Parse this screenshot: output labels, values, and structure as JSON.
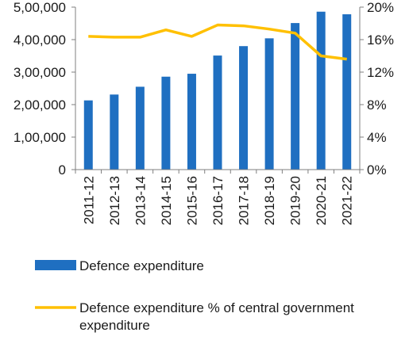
{
  "chart_data": {
    "type": "bar",
    "categories": [
      "2011-12",
      "2012-13",
      "2013-14",
      "2014-15",
      "2015-16",
      "2016-17",
      "2017-18",
      "2018-19",
      "2019-20",
      "2020-21",
      "2021-22"
    ],
    "series": [
      {
        "name": "Defence expenditure",
        "type": "bar",
        "axis": "left",
        "color": "#1f6fc1",
        "values": [
          213000,
          231000,
          255000,
          286000,
          295000,
          351000,
          380000,
          404000,
          451000,
          486000,
          478000
        ]
      },
      {
        "name": "Defence expenditure % of central government expenditure",
        "type": "line",
        "axis": "right",
        "color": "#ffc000",
        "values": [
          16.4,
          16.3,
          16.3,
          17.2,
          16.4,
          17.8,
          17.7,
          17.3,
          16.8,
          14.0,
          13.6
        ]
      }
    ],
    "left_axis": {
      "min": 0,
      "max": 500000,
      "ticks": [
        "0",
        "1,00,000",
        "2,00,000",
        "3,00,000",
        "4,00,000",
        "5,00,000"
      ]
    },
    "right_axis": {
      "min": 0,
      "max": 20,
      "ticks": [
        "0%",
        "4%",
        "8%",
        "12%",
        "16%",
        "20%"
      ]
    },
    "grid": false,
    "legend_position": "bottom"
  },
  "legend": {
    "bar_label": "Defence expenditure",
    "line_label_line1": "Defence expenditure % of central government",
    "line_label_line2": "expenditure"
  }
}
